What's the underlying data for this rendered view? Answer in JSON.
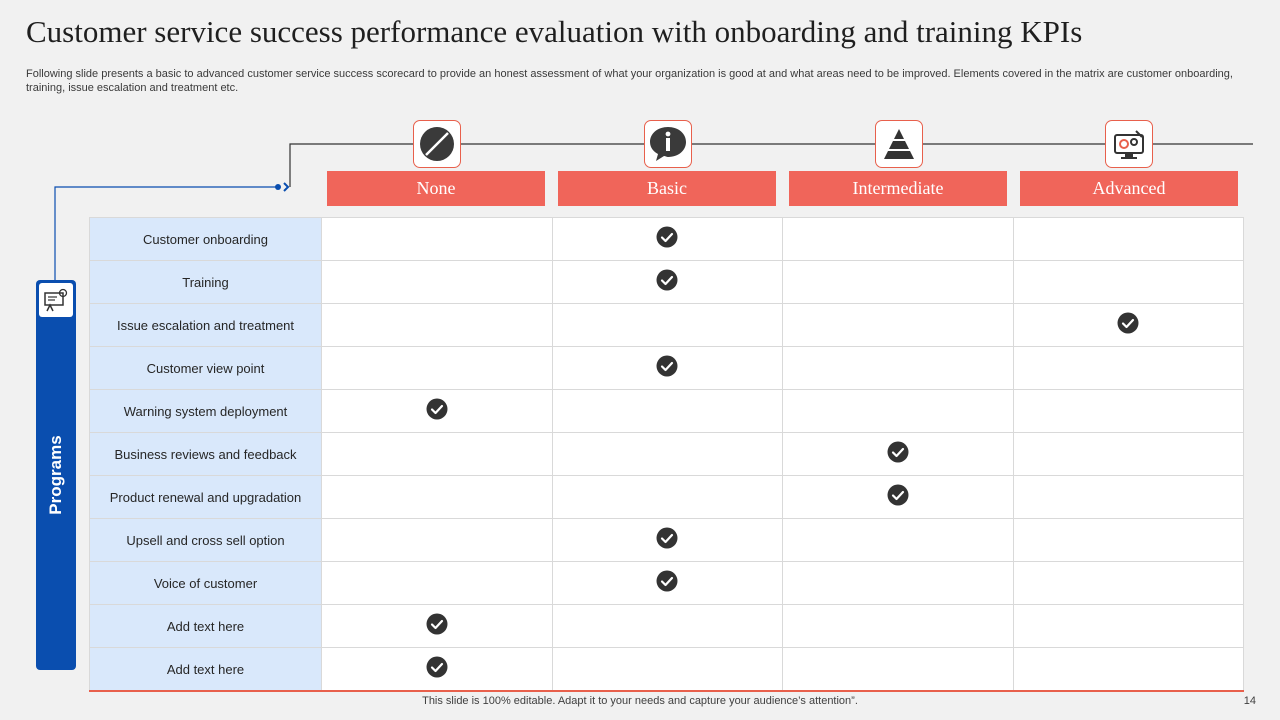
{
  "title": "Customer service success performance evaluation with onboarding and training KPIs",
  "subtitle": "Following slide presents a basic to advanced customer service success scorecard to provide an honest assessment of what your organization is good at and what areas need to be improved. Elements covered in the matrix are customer onboarding, training, issue escalation and treatment etc.",
  "levels": [
    {
      "label": "None",
      "icon": "prohibited-icon"
    },
    {
      "label": "Basic",
      "icon": "info-speech-bubble-icon"
    },
    {
      "label": "Intermediate",
      "icon": "pyramid-icon"
    },
    {
      "label": "Advanced",
      "icon": "monitor-gears-icon"
    }
  ],
  "programs_label": "Programs",
  "programs_icon": "presentation-gears-icon",
  "rows": [
    {
      "label": "Customer onboarding",
      "level": "Basic"
    },
    {
      "label": "Training",
      "level": "Basic"
    },
    {
      "label": "Issue escalation and treatment",
      "level": "Advanced"
    },
    {
      "label": "Customer view  point",
      "level": "Basic"
    },
    {
      "label": "Warning system deployment",
      "level": "None"
    },
    {
      "label": "Business reviews  and feedback",
      "level": "Intermediate"
    },
    {
      "label": "Product renewal  and upgradation",
      "level": "Intermediate"
    },
    {
      "label": "Upsell and cross sell option",
      "level": "Basic"
    },
    {
      "label": "Voice of customer",
      "level": "Basic"
    },
    {
      "label": "Add text here",
      "level": "None"
    },
    {
      "label": "Add text here",
      "level": "None"
    }
  ],
  "footer": "This slide is 100% editable. Adapt it to your needs and capture your audience’s attention”.",
  "page_number": "14",
  "colors": {
    "accent": "#f0655a",
    "brand_blue": "#0a4eaf",
    "label_bg": "#d9e8fb",
    "check": "#333333"
  }
}
